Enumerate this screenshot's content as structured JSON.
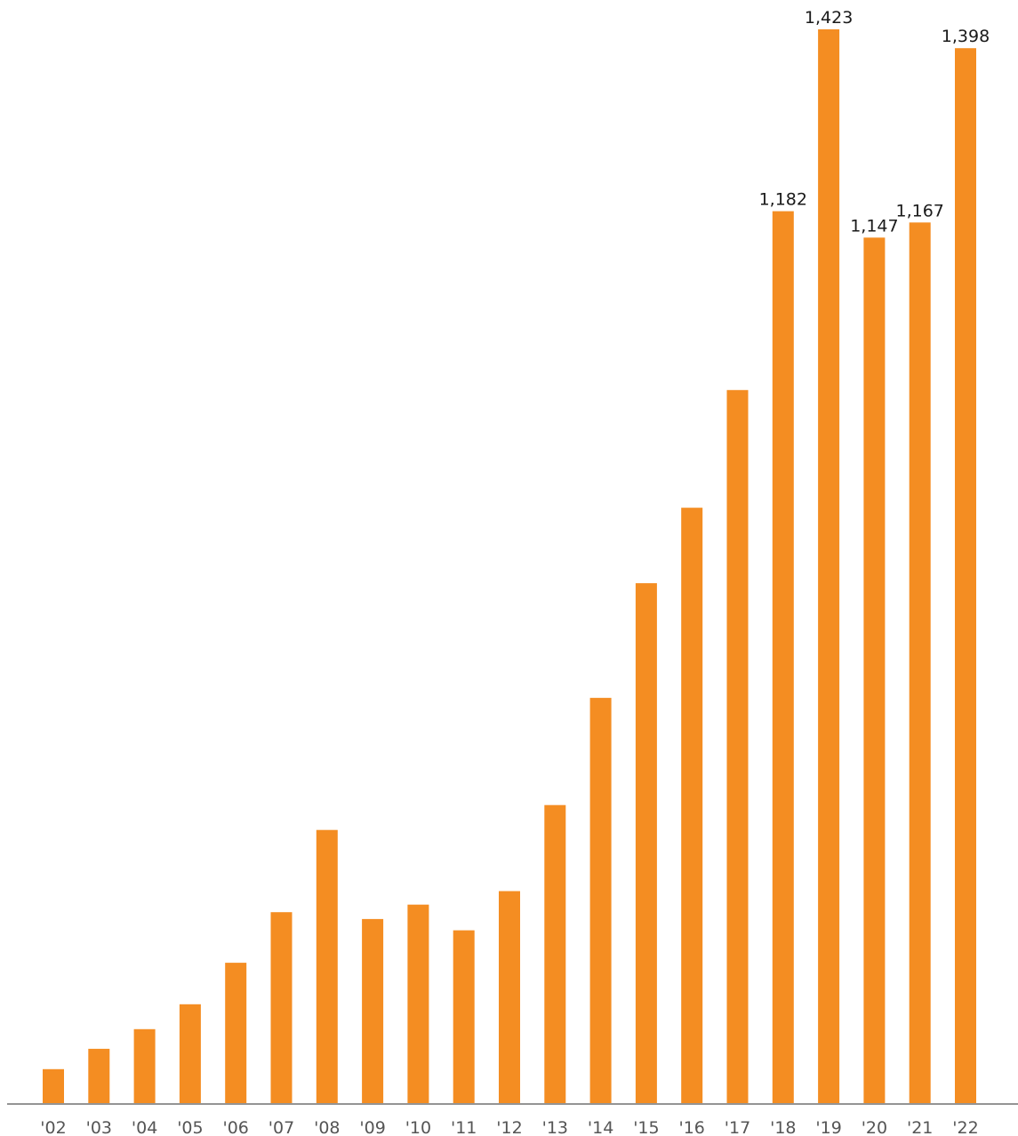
{
  "chart_data": {
    "type": "bar",
    "title": "",
    "xlabel": "",
    "ylabel": "",
    "categories": [
      "'02",
      "'03",
      "'04",
      "'05",
      "'06",
      "'07",
      "'08",
      "'09",
      "'10",
      "'11",
      "'12",
      "'13",
      "'14",
      "'15",
      "'16",
      "'17",
      "'18",
      "'19",
      "'20",
      "'21",
      "'22"
    ],
    "values": [
      45,
      72,
      98,
      131,
      186,
      253,
      362,
      244,
      263,
      229,
      281,
      395,
      537,
      689,
      789,
      945,
      1182,
      1423,
      1147,
      1167,
      1398
    ],
    "data_labels": [
      {
        "category": "'18",
        "text": "1,182"
      },
      {
        "category": "'19",
        "text": "1,423"
      },
      {
        "category": "'20",
        "text": "1,147"
      },
      {
        "category": "'21",
        "text": "1,167"
      },
      {
        "category": "'22",
        "text": "1,398"
      }
    ],
    "ylim": [
      0,
      1423
    ],
    "grid": false,
    "legend": "none",
    "bar_color": "#F48D22",
    "axis_color": "#555555"
  }
}
